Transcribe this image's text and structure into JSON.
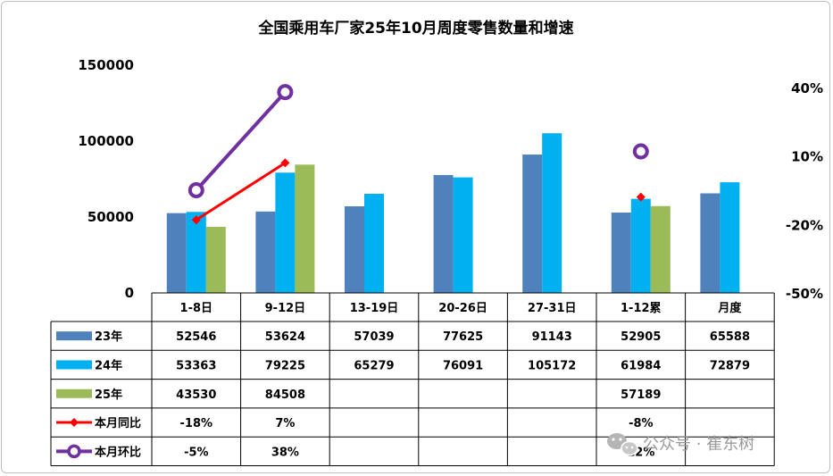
{
  "chart_data": {
    "type": "bar",
    "title": "全国乘用车厂家25年10月周度零售数量和增速",
    "categories": [
      "1-8日",
      "9-12日",
      "13-19日",
      "20-26日",
      "27-31日",
      "1-12累",
      "月度"
    ],
    "ylim": [
      0,
      150000
    ],
    "y_ticks": [
      "150000",
      "100000",
      "50000",
      "0"
    ],
    "y2lim": [
      -50,
      40
    ],
    "y2_ticks": [
      "40%",
      "10%",
      "-20%",
      "-50%"
    ],
    "series": [
      {
        "name": "23年",
        "kind": "bar",
        "color": "#4f81bd",
        "values": [
          52546,
          53624,
          57039,
          77625,
          91143,
          52905,
          65588
        ],
        "labels": [
          "52546",
          "53624",
          "57039",
          "77625",
          "91143",
          "52905",
          "65588"
        ]
      },
      {
        "name": "24年",
        "kind": "bar",
        "color": "#00b0f0",
        "values": [
          53363,
          79225,
          65279,
          76091,
          105172,
          61984,
          72879
        ],
        "labels": [
          "53363",
          "79225",
          "65279",
          "76091",
          "105172",
          "61984",
          "72879"
        ]
      },
      {
        "name": "25年",
        "kind": "bar",
        "color": "#9bbb59",
        "values": [
          43530,
          84508,
          null,
          null,
          null,
          57189,
          null
        ],
        "labels": [
          "43530",
          "84508",
          "",
          "",
          "",
          "57189",
          ""
        ]
      },
      {
        "name": "本月同比",
        "kind": "line",
        "axis": "right",
        "color": "#ff0000",
        "marker": "diamond",
        "values": [
          -18,
          7,
          null,
          null,
          null,
          -8,
          null
        ],
        "labels": [
          "-18%",
          "7%",
          "",
          "",
          "",
          "-8%",
          ""
        ]
      },
      {
        "name": "本月环比",
        "kind": "line",
        "axis": "right",
        "color": "#7030a0",
        "marker": "circle",
        "values": [
          -5,
          38,
          null,
          null,
          null,
          12,
          null
        ],
        "labels": [
          "-5%",
          "38%",
          "",
          "",
          "",
          "12%",
          ""
        ]
      }
    ],
    "legend": "table-left",
    "grid": false
  },
  "watermark": {
    "icon": "wechat-icon",
    "text": "公众号 · 崔东树"
  }
}
